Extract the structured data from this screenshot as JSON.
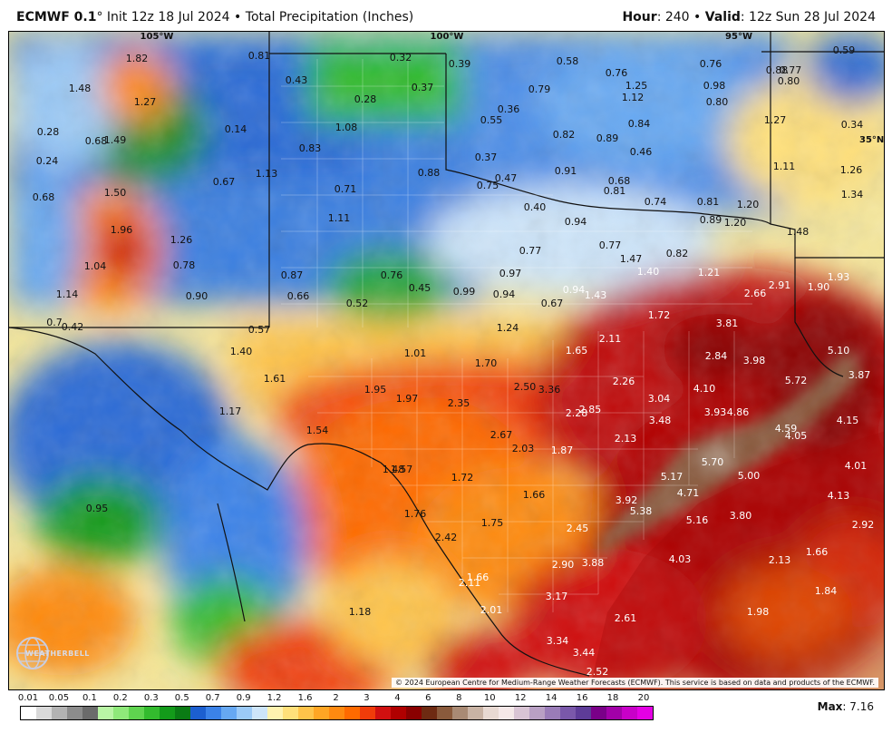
{
  "header": {
    "model": "ECMWF 0.1",
    "init_sep": "°",
    "init": " Init 12z 18 Jul 2024",
    "bullet": " • ",
    "product": "Total Precipitation (Inches)",
    "hour_label": "Hour",
    "hour_value": ": 240",
    "valid_label": "Valid",
    "valid_value": ": 12z Sun 28 Jul 2024"
  },
  "lon_labels": [
    "105°W",
    "100°W",
    "95°W"
  ],
  "lat_labels": [
    "35°N"
  ],
  "values": [
    "1.82",
    "1.48",
    "1.27",
    "0.28",
    "0.68",
    "1.49",
    "0.24",
    "0.68",
    "1.50",
    "1.96",
    "1.04",
    "1.26",
    "0.78",
    "1.14",
    "0.90",
    "0.7",
    "0.42",
    "0.81",
    "0.43",
    "0.32",
    "0.37",
    "0.28",
    "0.14",
    "1.08",
    "0.83",
    "0.67",
    "1.13",
    "0.71",
    "0.88",
    "1.11",
    "0.87",
    "0.66",
    "0.76",
    "0.45",
    "0.52",
    "0.57",
    "1.40",
    "1.61",
    "1.17",
    "0.95",
    "1.54",
    "1.48",
    "1.57",
    "0.39",
    "0.58",
    "0.79",
    "0.36",
    "0.55",
    "0.76",
    "1.25",
    "1.12",
    "0.84",
    "0.82",
    "0.89",
    "0.37",
    "0.75",
    "0.47",
    "0.91",
    "0.68",
    "0.46",
    "0.81",
    "0.74",
    "0.81",
    "0.40",
    "0.94",
    "0.89",
    "0.77",
    "0.77",
    "0.97",
    "0.99",
    "0.94",
    "0.67",
    "0.94",
    "1.43",
    "1.47",
    "1.40",
    "0.82",
    "1.21",
    "1.24",
    "1.01",
    "1.72",
    "0.76",
    "0.98",
    "0.88",
    "0.77",
    "0.80",
    "0.80",
    "0.59",
    "1.27",
    "0.34",
    "1.11",
    "1.26",
    "1.34",
    "1.20",
    "1.20",
    "1.48",
    "1.93",
    "2.91",
    "1.90",
    "2.66",
    "3.81",
    "5.10",
    "3.87",
    "2.84",
    "3.98",
    "5.72",
    "4.10",
    "3.04",
    "3.93",
    "4.86",
    "4.59",
    "4.15",
    "4.05",
    "3.48",
    "1.65",
    "2.11",
    "1.70",
    "1.95",
    "1.97",
    "2.35",
    "2.50",
    "3.36",
    "2.26",
    "2.28",
    "2.85",
    "2.67",
    "2.13",
    "2.03",
    "1.87",
    "1.72",
    "1.66",
    "1.76",
    "1.75",
    "2.42",
    "1.66",
    "2.11",
    "2.01",
    "1.18",
    "2.90",
    "3.88",
    "3.17",
    "3.34",
    "3.44",
    "2.52",
    "2.61",
    "5.17",
    "5.70",
    "5.00",
    "4.71",
    "3.92",
    "5.38",
    "5.16",
    "3.80",
    "4.01",
    "4.13",
    "2.92",
    "2.45",
    "4.03",
    "2.13",
    "1.66",
    "1.84",
    "1.98"
  ],
  "copyright": "© 2024 European Centre for Medium-Range Weather Forecasts (ECMWF). This service is based on data and products of the ECMWF.",
  "logo": "WEATHERBELL",
  "scale": {
    "labels": [
      "0.01",
      "0.05",
      "0.1",
      "0.2",
      "0.3",
      "0.5",
      "0.7",
      "0.9",
      "1.2",
      "1.6",
      "2",
      "3",
      "4",
      "6",
      "8",
      "10",
      "12",
      "14",
      "16",
      "18",
      "20"
    ],
    "colors": [
      "#ffffff",
      "#d9d9d9",
      "#b3b3b3",
      "#8c8c8c",
      "#6b6b6b",
      "#b9f5a5",
      "#8fe97a",
      "#5fd44f",
      "#33bb2e",
      "#139b1a",
      "#0a7b14",
      "#1c5fd0",
      "#3b82e8",
      "#66a8f2",
      "#9bcaf7",
      "#cde5fa",
      "#fff3b0",
      "#ffe07a",
      "#ffc44a",
      "#ffa624",
      "#ff8a10",
      "#ff6a00",
      "#f03c0a",
      "#d01010",
      "#b00000",
      "#8a0000",
      "#6e2a12",
      "#8a5a3c",
      "#a98a74",
      "#c9b3a4",
      "#e8d9d2",
      "#f5e8e8",
      "#d9c4d4",
      "#b9a0c4",
      "#9a7cb8",
      "#7a58aa",
      "#5e3c98",
      "#7a0088",
      "#a200a8",
      "#c800c8",
      "#e400e4"
    ]
  },
  "max_label": "Max",
  "max_value": ": 7.16"
}
